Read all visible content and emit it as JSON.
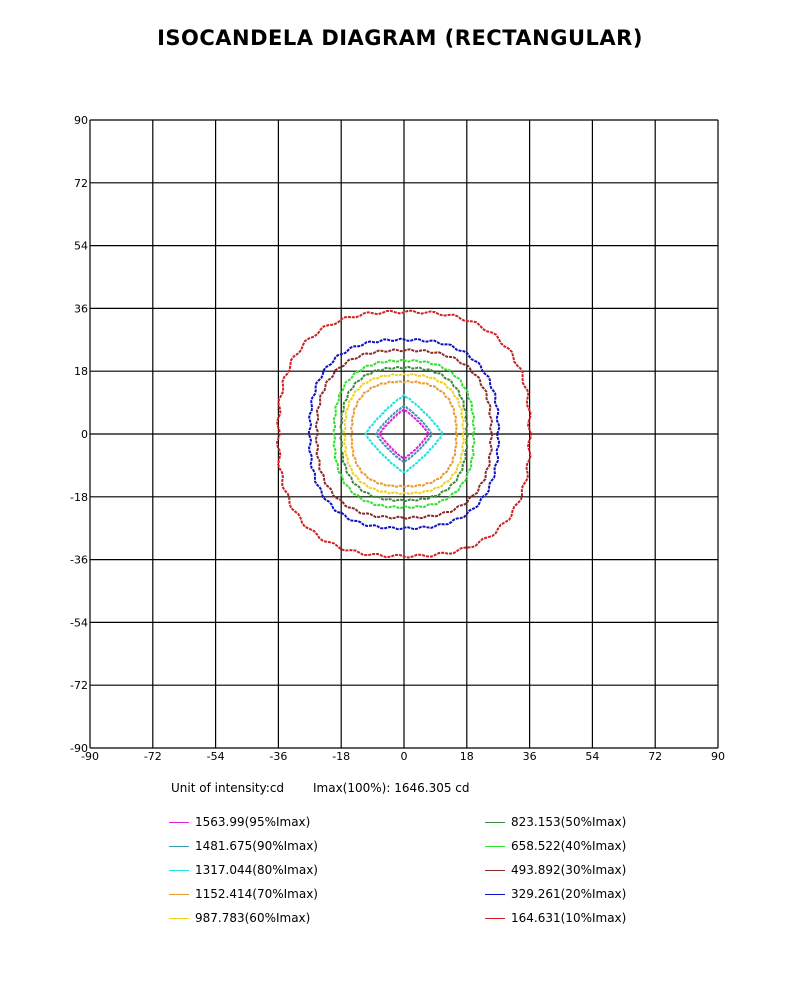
{
  "chart_data": {
    "type": "contour",
    "title": "ISOCANDELA DIAGRAM (RECTANGULAR)",
    "xlim": [
      -90,
      90
    ],
    "ylim": [
      -90,
      90
    ],
    "x_ticks": [
      "-90",
      "-72",
      "-54",
      "-36",
      "-18",
      "0",
      "18",
      "36",
      "54",
      "72",
      "90"
    ],
    "y_ticks": [
      "90",
      "72",
      "54",
      "36",
      "18",
      "0",
      "-18",
      "-36",
      "-54",
      "-72",
      "-90"
    ],
    "grid": true,
    "unit_label": "Unit of intensity:cd",
    "imax_label": "Imax(100%): 1646.305 cd",
    "series": [
      {
        "name": "1563.99(95%Imax)",
        "color": "#e020e0",
        "rx": 7,
        "ry": 7,
        "shape": "diamond"
      },
      {
        "name": "1481.675(90%Imax)",
        "color": "#3a9ab0",
        "rx": 8,
        "ry": 8,
        "shape": "diamond"
      },
      {
        "name": "1317.044(80%Imax)",
        "color": "#22e0e0",
        "rx": 11,
        "ry": 11,
        "shape": "diamond"
      },
      {
        "name": "1152.414(70%Imax)",
        "color": "#e89a30",
        "rx": 15,
        "ry": 15,
        "shape": "square"
      },
      {
        "name": "987.783(60%Imax)",
        "color": "#f0d020",
        "rx": 17,
        "ry": 17,
        "shape": "square"
      },
      {
        "name": "823.153(50%Imax)",
        "color": "#3a8a3a",
        "rx": 18,
        "ry": 19,
        "shape": "square"
      },
      {
        "name": "658.522(40%Imax)",
        "color": "#30e030",
        "rx": 20,
        "ry": 21,
        "shape": "square"
      },
      {
        "name": "493.892(30%Imax)",
        "color": "#8a2a2a",
        "rx": 25,
        "ry": 24,
        "shape": "square"
      },
      {
        "name": "329.261(20%Imax)",
        "color": "#1010c0",
        "rx": 27,
        "ry": 27,
        "shape": "square"
      },
      {
        "name": "164.631(10%Imax)",
        "color": "#d02020",
        "rx": 36,
        "ry": 35,
        "shape": "square"
      }
    ],
    "legend_position": "bottom"
  }
}
